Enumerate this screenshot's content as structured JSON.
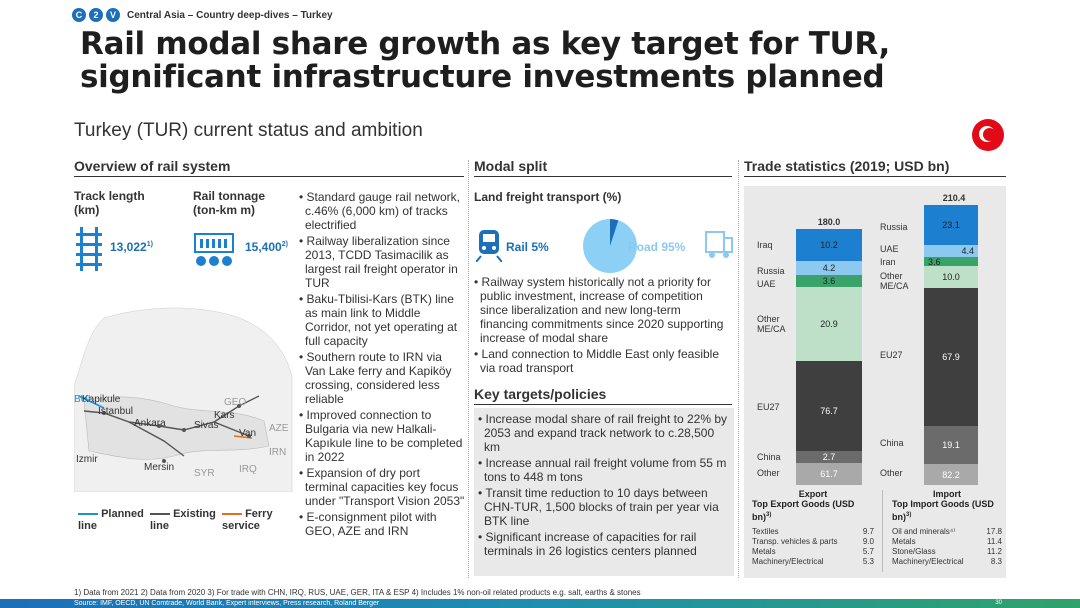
{
  "breadcrumb": {
    "steps": [
      "C",
      "2",
      "V"
    ],
    "text": "Central Asia – Country deep-dives – Turkey"
  },
  "title_line1": "Rail modal share growth as key target for TUR,",
  "title_line2": "significant infrastructure investments planned",
  "subtitle": "Turkey (TUR) current status and ambition",
  "overview": {
    "header": "Overview of rail system",
    "track_label": "Track length (km)",
    "track_value": "13,022",
    "track_sup": "1)",
    "tonnage_label": "Rail tonnage (ton-km m)",
    "tonnage_value": "15,400",
    "tonnage_sup": "2)",
    "bullets": [
      "• Standard gauge rail network, c.46% (6,000 km) of tracks electrified",
      "• Railway liberalization since 2013, TCDD Tasimacilik as largest rail freight operator in TUR",
      "• Baku-Tbilisi-Kars (BTK) line as main link to Middle Corridor, not yet operating at full capacity",
      "• Southern route to IRN via Van Lake ferry and Kapiköy crossing, considered less reliable",
      "• Improved connection to Bulgaria via new Halkali-Kapıkule line to be completed in 2022",
      "• Expansion of dry port terminal capacities key focus under \"Transport Vision 2053\"",
      "• E-consignment pilot with GEO, AZE and IRN"
    ],
    "map": {
      "cities": [
        "Kapikule",
        "Istanbul",
        "Ankara",
        "Sivas",
        "Kars",
        "Van",
        "Izmir",
        "Mersin"
      ],
      "countries": [
        "BUL",
        "GEO",
        "AZE",
        "IRN",
        "IRQ",
        "SYR"
      ],
      "legend": [
        {
          "label": "Planned line",
          "color": "#1c8fd8"
        },
        {
          "label": "Existing line",
          "color": "#555555"
        },
        {
          "label": "Ferry service",
          "color": "#e07020"
        }
      ]
    }
  },
  "modal": {
    "header": "Modal split",
    "subheader": "Land freight transport (%)",
    "rail_label": "Rail 5%",
    "road_label": "Road 95%",
    "rail_share": 5,
    "bullets": [
      "• Railway system historically not a priority for public investment, increase of competition since liberalization and new long-term financing commitments since 2020 supporting increase of modal share",
      "• Land connection to Middle East only feasible via road transport"
    ]
  },
  "targets": {
    "header": "Key targets/policies",
    "bullets": [
      "• Increase modal share of rail freight to 22% by 2053 and expand track network to c.28,500 km",
      "• Increase annual rail freight volume from 55 m tons to 448 m tons",
      "• Transit time reduction to 10 days between CHN-TUR, 1,500 blocks of train per year via BTK line",
      "• Significant increase of capacities for rail terminals in 26 logistics centers planned"
    ]
  },
  "trade": {
    "header": "Trade statistics (2019; USD bn)",
    "export": {
      "total": "180.0",
      "label": "Export",
      "segments": [
        {
          "name": "Iraq",
          "value": "10.2",
          "color": "#1c7fd0"
        },
        {
          "name": "Russia",
          "value": "4.2",
          "color": "#8cc8f0"
        },
        {
          "name": "UAE",
          "value": "3.6",
          "color": "#3aa36a"
        },
        {
          "name": "Other ME/CA",
          "value": "20.9",
          "color": "#bfe0c8"
        },
        {
          "name": "EU27",
          "value": "76.7",
          "color": "#3f3f3f"
        },
        {
          "name": "China",
          "value": "2.7",
          "color": "#6b6b6b"
        },
        {
          "name": "Other",
          "value": "61.7",
          "color": "#a9a9a9"
        }
      ],
      "top_title": "Top Export Goods (USD bn)",
      "top_sup": "3)",
      "top": [
        {
          "name": "Textiles",
          "value": "9.7"
        },
        {
          "name": "Transp. vehicles & parts",
          "value": "9.0"
        },
        {
          "name": "Metals",
          "value": "5.7"
        },
        {
          "name": "Machinery/Electrical",
          "value": "5.3"
        }
      ]
    },
    "import": {
      "total": "210.4",
      "label": "Import",
      "segments": [
        {
          "name": "Russia",
          "value": "23.1",
          "color": "#1c7fd0"
        },
        {
          "name": "UAE",
          "value": "4.4",
          "color": "#8cc8f0"
        },
        {
          "name": "Iran",
          "value": "3.6",
          "color": "#3aa36a"
        },
        {
          "name": "Other ME/CA",
          "value": "10.0",
          "color": "#bfe0c8"
        },
        {
          "name": "EU27",
          "value": "67.9",
          "color": "#3f3f3f"
        },
        {
          "name": "China",
          "value": "19.1",
          "color": "#6b6b6b"
        },
        {
          "name": "Other",
          "value": "82.2",
          "color": "#a9a9a9"
        }
      ],
      "top_title": "Top Import Goods (USD bn)",
      "top_sup": "3)",
      "top": [
        {
          "name": "Oil and minerals⁴⁾",
          "value": "17.8"
        },
        {
          "name": "Metals",
          "value": "11.4"
        },
        {
          "name": "Stone/Glass",
          "value": "11.2"
        },
        {
          "name": "Machinery/Electrical",
          "value": "8.3"
        }
      ]
    }
  },
  "footnotes": "1) Data from 2021     2) Data from 2020     3) For trade with CHN, IRQ, RUS, UAE, GER, ITA & ESP     4) Includes 1% non-oil related products e.g. salt, earths & stones",
  "source": "Source: IMF, OECD, UN Comtrade, World Bank, Expert interviews, Press research, Roland Berger",
  "page_number": "30",
  "colors": {
    "accent": "#1c6fb8",
    "footer_gradient": [
      "#1c6fb8",
      "#2fa36a"
    ]
  }
}
